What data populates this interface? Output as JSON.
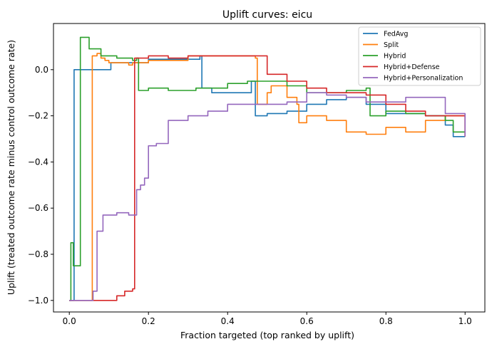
{
  "chart_data": {
    "type": "line",
    "title": "Uplift curves: eicu",
    "xlabel": "Fraction targeted (top ranked by uplift)",
    "ylabel": "Uplift (treated outcome rate minus control outcome rate)",
    "xlim": [
      -0.04,
      1.05
    ],
    "ylim": [
      -1.05,
      0.2
    ],
    "xticks": [
      0.0,
      0.2,
      0.4,
      0.6,
      0.8,
      1.0
    ],
    "xtick_labels": [
      "0.0",
      "0.2",
      "0.4",
      "0.6",
      "0.8",
      "1.0"
    ],
    "yticks": [
      -1.0,
      -0.8,
      -0.6,
      -0.4,
      -0.2,
      0.0
    ],
    "ytick_labels": [
      "−1.0",
      "−0.8",
      "−0.6",
      "−0.4",
      "−0.2",
      "0.0"
    ],
    "grid": false,
    "legend_position": "top-right",
    "series": [
      {
        "name": "FedAvg",
        "color": "#1f77b4",
        "points": [
          [
            0.0,
            -1.0
          ],
          [
            0.01,
            -1.0
          ],
          [
            0.012,
            0.0
          ],
          [
            0.1,
            0.0
          ],
          [
            0.105,
            0.03
          ],
          [
            0.17,
            0.03
          ],
          [
            0.2,
            0.045
          ],
          [
            0.33,
            0.06
          ],
          [
            0.335,
            -0.08
          ],
          [
            0.36,
            -0.1
          ],
          [
            0.45,
            -0.1
          ],
          [
            0.46,
            -0.05
          ],
          [
            0.47,
            -0.2
          ],
          [
            0.5,
            -0.19
          ],
          [
            0.55,
            -0.18
          ],
          [
            0.6,
            -0.15
          ],
          [
            0.65,
            -0.13
          ],
          [
            0.7,
            -0.12
          ],
          [
            0.75,
            -0.15
          ],
          [
            0.8,
            -0.19
          ],
          [
            0.85,
            -0.19
          ],
          [
            0.9,
            -0.2
          ],
          [
            0.95,
            -0.24
          ],
          [
            0.97,
            -0.29
          ],
          [
            1.0,
            -0.29
          ]
        ]
      },
      {
        "name": "Split",
        "color": "#ff7f0e",
        "points": [
          [
            0.0,
            -1.0
          ],
          [
            0.055,
            -1.0
          ],
          [
            0.058,
            0.06
          ],
          [
            0.07,
            0.07
          ],
          [
            0.08,
            0.05
          ],
          [
            0.09,
            0.04
          ],
          [
            0.1,
            0.03
          ],
          [
            0.15,
            0.02
          ],
          [
            0.16,
            0.03
          ],
          [
            0.2,
            0.04
          ],
          [
            0.3,
            0.06
          ],
          [
            0.4,
            0.06
          ],
          [
            0.47,
            0.05
          ],
          [
            0.475,
            -0.15
          ],
          [
            0.5,
            -0.1
          ],
          [
            0.51,
            -0.07
          ],
          [
            0.55,
            -0.12
          ],
          [
            0.575,
            -0.15
          ],
          [
            0.58,
            -0.23
          ],
          [
            0.6,
            -0.2
          ],
          [
            0.65,
            -0.22
          ],
          [
            0.7,
            -0.27
          ],
          [
            0.75,
            -0.28
          ],
          [
            0.8,
            -0.25
          ],
          [
            0.85,
            -0.27
          ],
          [
            0.9,
            -0.22
          ],
          [
            0.95,
            -0.2
          ],
          [
            1.0,
            -0.29
          ]
        ]
      },
      {
        "name": "Hybrid",
        "color": "#2ca02c",
        "points": [
          [
            0.0,
            -1.0
          ],
          [
            0.002,
            -1.0
          ],
          [
            0.004,
            -0.75
          ],
          [
            0.01,
            -0.85
          ],
          [
            0.02,
            -0.85
          ],
          [
            0.025,
            -0.85
          ],
          [
            0.028,
            0.14
          ],
          [
            0.05,
            0.09
          ],
          [
            0.08,
            0.06
          ],
          [
            0.12,
            0.05
          ],
          [
            0.16,
            0.04
          ],
          [
            0.17,
            0.05
          ],
          [
            0.175,
            -0.09
          ],
          [
            0.2,
            -0.08
          ],
          [
            0.25,
            -0.09
          ],
          [
            0.3,
            -0.09
          ],
          [
            0.32,
            -0.08
          ],
          [
            0.4,
            -0.06
          ],
          [
            0.45,
            -0.05
          ],
          [
            0.5,
            -0.05
          ],
          [
            0.55,
            -0.07
          ],
          [
            0.6,
            -0.1
          ],
          [
            0.65,
            -0.1
          ],
          [
            0.7,
            -0.09
          ],
          [
            0.75,
            -0.08
          ],
          [
            0.76,
            -0.2
          ],
          [
            0.8,
            -0.18
          ],
          [
            0.85,
            -0.19
          ],
          [
            0.9,
            -0.2
          ],
          [
            0.95,
            -0.22
          ],
          [
            0.97,
            -0.27
          ],
          [
            1.0,
            -0.27
          ]
        ]
      },
      {
        "name": "Hybrid+Defense",
        "color": "#d62728",
        "points": [
          [
            0.0,
            -1.0
          ],
          [
            0.03,
            -1.0
          ],
          [
            0.05,
            -1.0
          ],
          [
            0.1,
            -1.0
          ],
          [
            0.12,
            -0.98
          ],
          [
            0.14,
            -0.96
          ],
          [
            0.16,
            -0.95
          ],
          [
            0.165,
            0.05
          ],
          [
            0.2,
            0.06
          ],
          [
            0.25,
            0.05
          ],
          [
            0.3,
            0.06
          ],
          [
            0.35,
            0.06
          ],
          [
            0.4,
            0.06
          ],
          [
            0.45,
            0.06
          ],
          [
            0.5,
            -0.02
          ],
          [
            0.55,
            -0.05
          ],
          [
            0.6,
            -0.08
          ],
          [
            0.65,
            -0.1
          ],
          [
            0.7,
            -0.1
          ],
          [
            0.75,
            -0.11
          ],
          [
            0.8,
            -0.15
          ],
          [
            0.85,
            -0.18
          ],
          [
            0.9,
            -0.2
          ],
          [
            0.95,
            -0.2
          ],
          [
            1.0,
            -0.29
          ]
        ]
      },
      {
        "name": "Hybrid+Personalization",
        "color": "#9467bd",
        "points": [
          [
            0.0,
            -1.0
          ],
          [
            0.05,
            -1.0
          ],
          [
            0.06,
            -0.96
          ],
          [
            0.07,
            -0.7
          ],
          [
            0.085,
            -0.63
          ],
          [
            0.12,
            -0.62
          ],
          [
            0.15,
            -0.63
          ],
          [
            0.17,
            -0.52
          ],
          [
            0.18,
            -0.5
          ],
          [
            0.19,
            -0.47
          ],
          [
            0.2,
            -0.33
          ],
          [
            0.22,
            -0.32
          ],
          [
            0.24,
            -0.32
          ],
          [
            0.25,
            -0.22
          ],
          [
            0.3,
            -0.2
          ],
          [
            0.35,
            -0.18
          ],
          [
            0.4,
            -0.15
          ],
          [
            0.45,
            -0.15
          ],
          [
            0.5,
            -0.15
          ],
          [
            0.55,
            -0.14
          ],
          [
            0.6,
            -0.1
          ],
          [
            0.65,
            -0.11
          ],
          [
            0.7,
            -0.12
          ],
          [
            0.75,
            -0.14
          ],
          [
            0.8,
            -0.14
          ],
          [
            0.85,
            -0.12
          ],
          [
            0.9,
            -0.12
          ],
          [
            0.95,
            -0.19
          ],
          [
            1.0,
            -0.29
          ]
        ]
      }
    ]
  }
}
